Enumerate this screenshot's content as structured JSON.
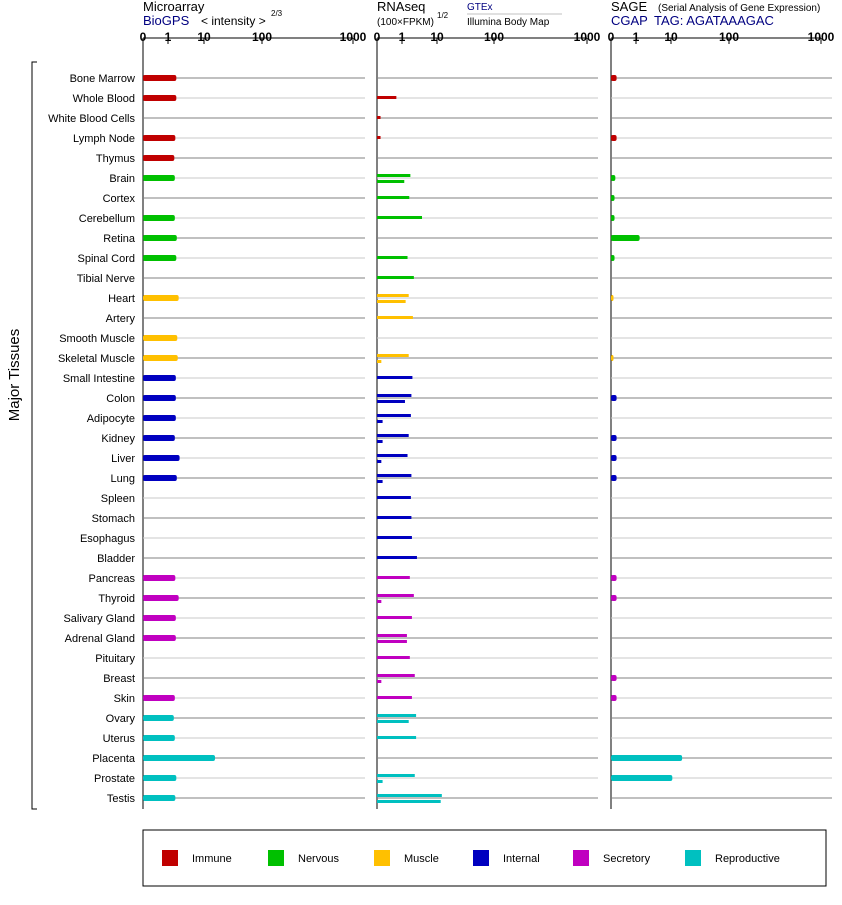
{
  "headers": {
    "microarray": {
      "title": "Microarray",
      "source": "BioGPS",
      "scale_label": "< intensity >",
      "exponent": "2/3"
    },
    "rnaseq": {
      "title": "RNAseq",
      "unit_label": "(100×FPKM)",
      "exponent": "1/2",
      "source1": "GTEx",
      "source2": "Illumina Body Map"
    },
    "sage": {
      "title": "SAGE",
      "subtitle": "(Serial Analysis of Gene Expression)",
      "source": "CGAP",
      "tag": "TAG: AGATAAAGAC"
    }
  },
  "side_label": "Major Tissues",
  "colors": {
    "Immune": "#c00000",
    "Nervous": "#00c000",
    "Muscle": "#ffc000",
    "Internal": "#0000c0",
    "Secretory": "#c000c0",
    "Reproductive": "#00c0c0"
  },
  "legend": [
    {
      "name": "Immune",
      "color": "#c00000"
    },
    {
      "name": "Nervous",
      "color": "#00c000"
    },
    {
      "name": "Muscle",
      "color": "#ffc000"
    },
    {
      "name": "Internal",
      "color": "#0000c0"
    },
    {
      "name": "Secretory",
      "color": "#c000c0"
    },
    {
      "name": "Reproductive",
      "color": "#00c0c0"
    }
  ],
  "chart_data": {
    "type": "bar",
    "orientation": "horizontal",
    "ticks": [
      "0",
      "1",
      "10",
      "100",
      "1000"
    ],
    "panels": [
      "Microarray",
      "RNAseq",
      "SAGE"
    ],
    "tissues": [
      {
        "name": "Bone Marrow",
        "group": "Immune",
        "microarray": 2.5,
        "rnaseq": [],
        "sage": [
          0.05
        ]
      },
      {
        "name": "Whole Blood",
        "group": "Immune",
        "microarray": 2.5,
        "rnaseq": [
          0.6
        ],
        "sage": []
      },
      {
        "name": "White Blood Cells",
        "group": "Immune",
        "microarray": null,
        "rnaseq": [
          0.02
        ],
        "sage": []
      },
      {
        "name": "Lymph Node",
        "group": "Immune",
        "microarray": 2.3,
        "rnaseq": [
          0.02
        ],
        "sage": [
          0.05
        ]
      },
      {
        "name": "Thymus",
        "group": "Immune",
        "microarray": 2.1,
        "rnaseq": [],
        "sage": []
      },
      {
        "name": "Brain",
        "group": "Nervous",
        "microarray": 2.2,
        "rnaseq": [
          2.3,
          1.3
        ],
        "sage": [
          0.03
        ]
      },
      {
        "name": "Cortex",
        "group": "Nervous",
        "microarray": null,
        "rnaseq": [
          2.1
        ],
        "sage": [
          0.02
        ]
      },
      {
        "name": "Cerebellum",
        "group": "Nervous",
        "microarray": 2.2,
        "rnaseq": [
          5.0
        ],
        "sage": [
          0.02
        ]
      },
      {
        "name": "Retina",
        "group": "Nervous",
        "microarray": 2.6,
        "rnaseq": [],
        "sage": [
          1.5
        ]
      },
      {
        "name": "Spinal Cord",
        "group": "Nervous",
        "microarray": 2.5,
        "rnaseq": [
          1.8
        ],
        "sage": [
          0.02
        ]
      },
      {
        "name": "Tibial Nerve",
        "group": "Nervous",
        "microarray": null,
        "rnaseq": [
          3.0
        ],
        "sage": []
      },
      {
        "name": "Heart",
        "group": "Muscle",
        "microarray": 3.0,
        "rnaseq": [
          2.0,
          1.5
        ],
        "sage": [
          0.01
        ]
      },
      {
        "name": "Artery",
        "group": "Muscle",
        "microarray": null,
        "rnaseq": [
          2.8
        ],
        "sage": []
      },
      {
        "name": "Smooth Muscle",
        "group": "Muscle",
        "microarray": 2.7,
        "rnaseq": [],
        "sage": []
      },
      {
        "name": "Skeletal Muscle",
        "group": "Muscle",
        "microarray": 2.8,
        "rnaseq": [
          2.0,
          0.03
        ],
        "sage": [
          0.01
        ]
      },
      {
        "name": "Small Intestine",
        "group": "Internal",
        "microarray": 2.4,
        "rnaseq": [
          2.7
        ],
        "sage": []
      },
      {
        "name": "Colon",
        "group": "Internal",
        "microarray": 2.4,
        "rnaseq": [
          2.5,
          1.4
        ],
        "sage": [
          0.05
        ]
      },
      {
        "name": "Adipocyte",
        "group": "Internal",
        "microarray": 2.4,
        "rnaseq": [
          2.4,
          0.05
        ],
        "sage": []
      },
      {
        "name": "Kidney",
        "group": "Internal",
        "microarray": 2.2,
        "rnaseq": [
          2.0,
          0.05
        ],
        "sage": [
          0.05
        ]
      },
      {
        "name": "Liver",
        "group": "Internal",
        "microarray": 3.2,
        "rnaseq": [
          1.8,
          0.03
        ],
        "sage": [
          0.05
        ]
      },
      {
        "name": "Lung",
        "group": "Internal",
        "microarray": 2.6,
        "rnaseq": [
          2.5,
          0.05
        ],
        "sage": [
          0.05
        ]
      },
      {
        "name": "Spleen",
        "group": "Internal",
        "microarray": null,
        "rnaseq": [
          2.4
        ],
        "sage": []
      },
      {
        "name": "Stomach",
        "group": "Internal",
        "microarray": null,
        "rnaseq": [
          2.5
        ],
        "sage": []
      },
      {
        "name": "Esophagus",
        "group": "Internal",
        "microarray": null,
        "rnaseq": [
          2.6
        ],
        "sage": []
      },
      {
        "name": "Bladder",
        "group": "Internal",
        "microarray": null,
        "rnaseq": [
          3.7
        ],
        "sage": []
      },
      {
        "name": "Pancreas",
        "group": "Secretory",
        "microarray": 2.3,
        "rnaseq": [
          2.2
        ],
        "sage": [
          0.05
        ]
      },
      {
        "name": "Thyroid",
        "group": "Secretory",
        "microarray": 3.0,
        "rnaseq": [
          3.0,
          0.03
        ],
        "sage": [
          0.05
        ]
      },
      {
        "name": "Salivary Gland",
        "group": "Secretory",
        "microarray": 2.4,
        "rnaseq": [
          2.6
        ],
        "sage": []
      },
      {
        "name": "Adrenal Gland",
        "group": "Secretory",
        "microarray": 2.4,
        "rnaseq": [
          1.7,
          1.7
        ],
        "sage": []
      },
      {
        "name": "Pituitary",
        "group": "Secretory",
        "microarray": null,
        "rnaseq": [
          2.2
        ],
        "sage": []
      },
      {
        "name": "Breast",
        "group": "Secretory",
        "microarray": null,
        "rnaseq": [
          3.2,
          0.03
        ],
        "sage": [
          0.05
        ]
      },
      {
        "name": "Skin",
        "group": "Secretory",
        "microarray": 2.2,
        "rnaseq": [
          2.6
        ],
        "sage": [
          0.05
        ]
      },
      {
        "name": "Ovary",
        "group": "Reproductive",
        "microarray": 2.0,
        "rnaseq": [
          3.5,
          2.0
        ],
        "sage": []
      },
      {
        "name": "Uterus",
        "group": "Reproductive",
        "microarray": 2.2,
        "rnaseq": [
          3.5
        ],
        "sage": []
      },
      {
        "name": "Placenta",
        "group": "Reproductive",
        "microarray": 22,
        "rnaseq": [],
        "sage": [
          20
        ]
      },
      {
        "name": "Prostate",
        "group": "Reproductive",
        "microarray": 2.5,
        "rnaseq": [
          3.2,
          0.05
        ],
        "sage": [
          11
        ]
      },
      {
        "name": "Testis",
        "group": "Reproductive",
        "microarray": 2.3,
        "rnaseq": [
          14,
          13
        ],
        "sage": []
      }
    ]
  }
}
